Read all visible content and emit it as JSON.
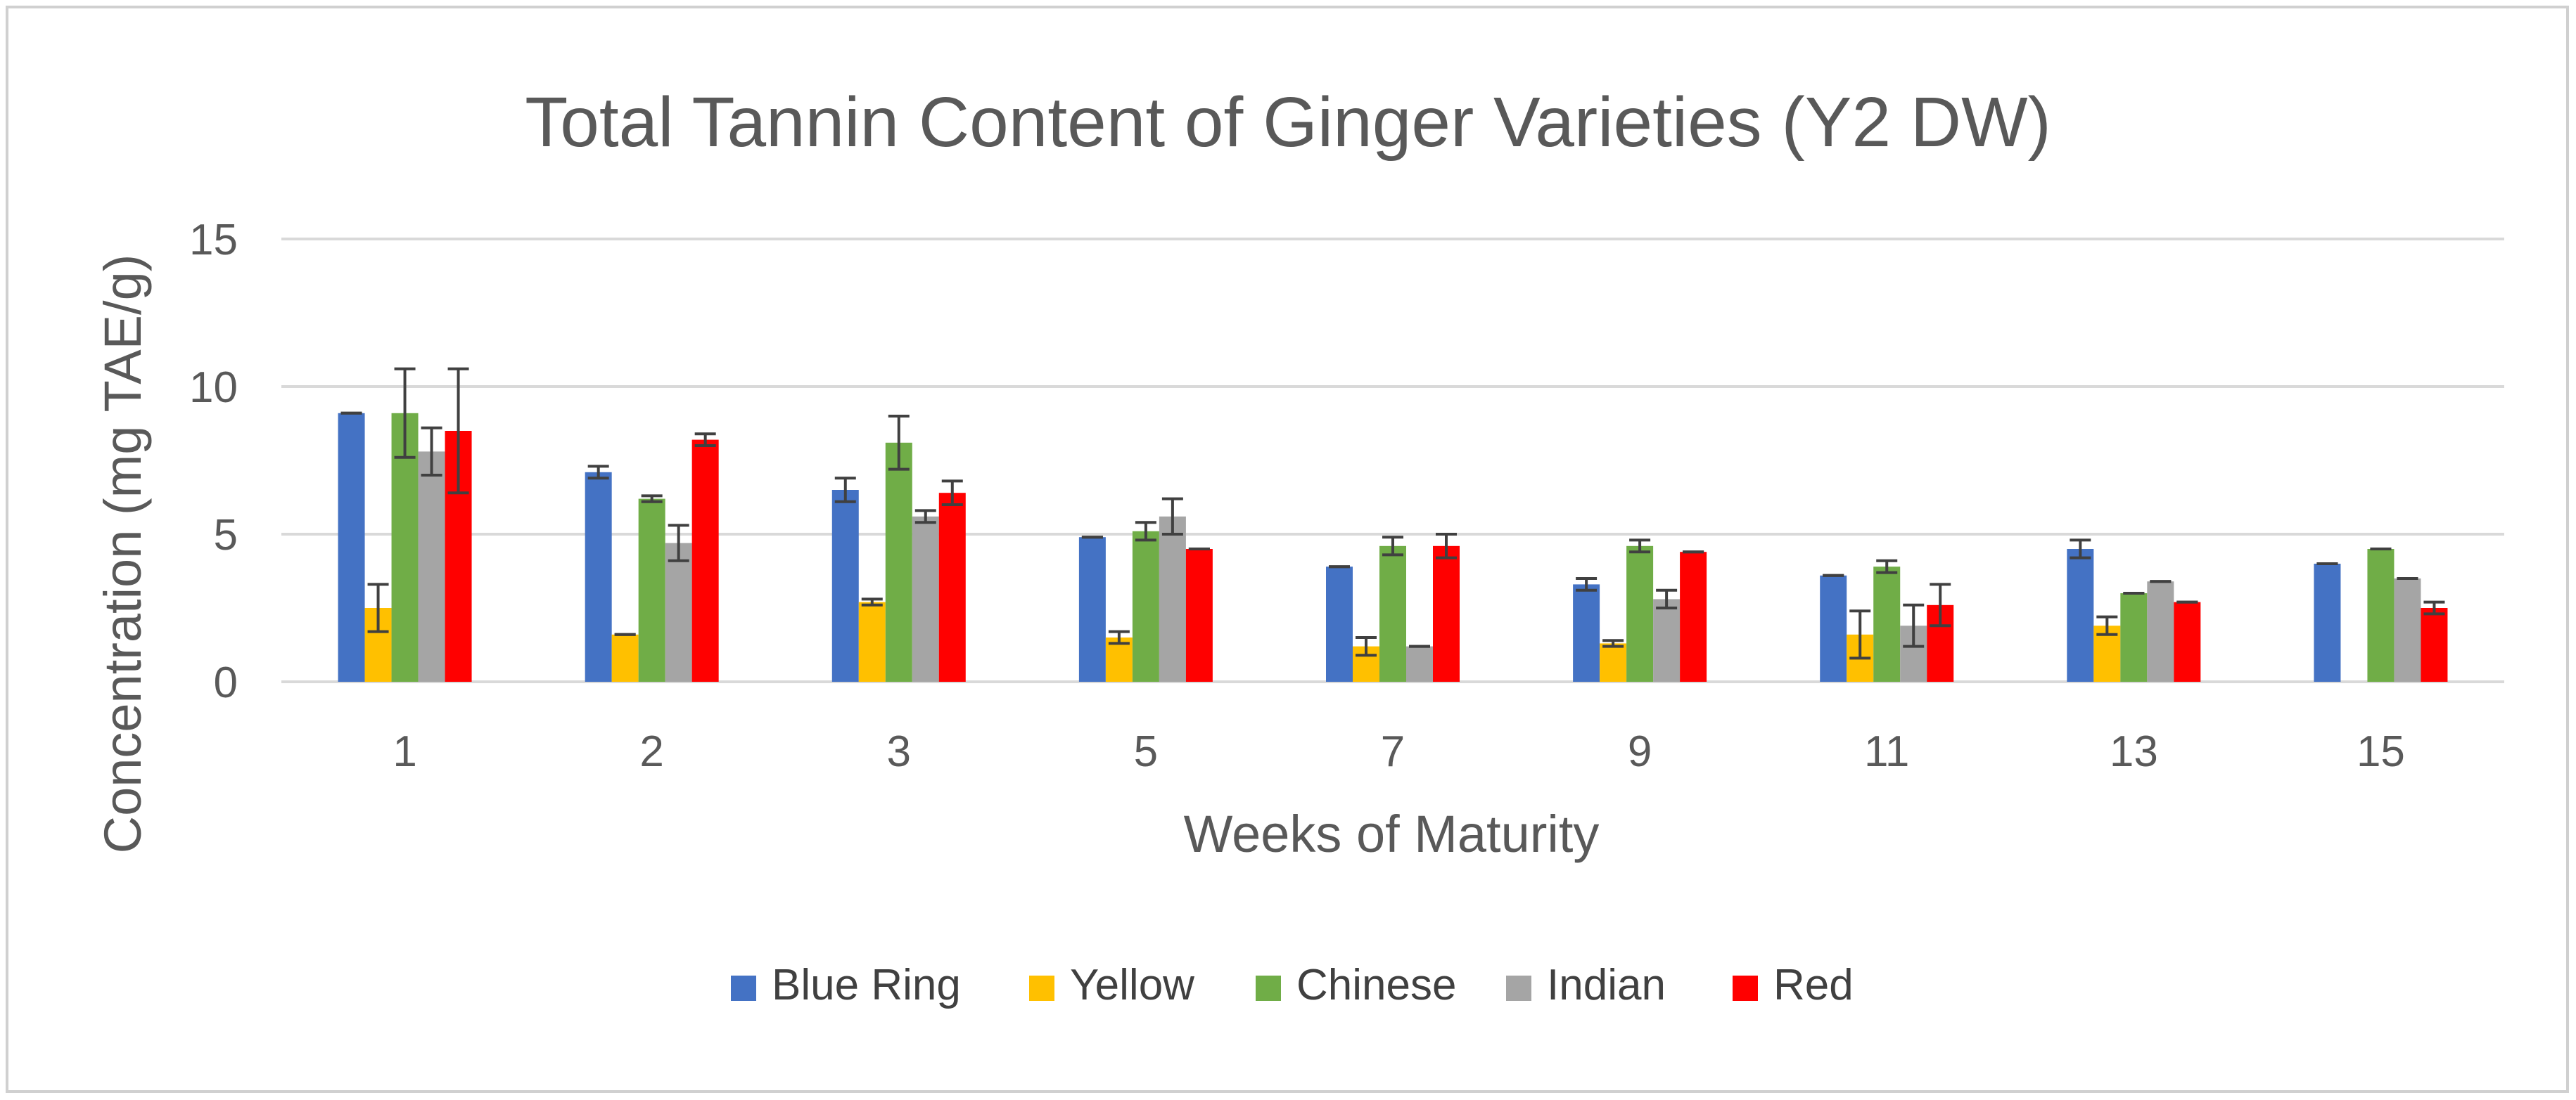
{
  "chart_data": {
    "type": "bar",
    "title": "Total Tannin Content of Ginger Varieties (Y2 DW)",
    "xlabel": "Weeks of Maturity",
    "ylabel": "Concentration (mg TAE/g)",
    "ylim": [
      0,
      15
    ],
    "yticks": [
      0,
      5,
      10,
      15
    ],
    "grid": true,
    "legend_position": "bottom",
    "categories": [
      "1",
      "2",
      "3",
      "5",
      "7",
      "9",
      "11",
      "13",
      "15"
    ],
    "series": [
      {
        "name": "Blue Ring",
        "color": "#4472C4",
        "values": [
          9.1,
          7.1,
          6.5,
          4.9,
          3.9,
          3.3,
          3.6,
          4.5,
          4.0
        ],
        "errors": [
          0.0,
          0.2,
          0.4,
          0.0,
          0.0,
          0.2,
          0.0,
          0.3,
          0.0
        ]
      },
      {
        "name": "Yellow",
        "color": "#FFC000",
        "values": [
          2.5,
          1.6,
          2.7,
          1.5,
          1.2,
          1.3,
          1.6,
          1.9,
          0.0
        ],
        "errors": [
          0.8,
          0.0,
          0.1,
          0.2,
          0.3,
          0.1,
          0.8,
          0.3,
          0.0
        ]
      },
      {
        "name": "Chinese",
        "color": "#70AD47",
        "values": [
          9.1,
          6.2,
          8.1,
          5.1,
          4.6,
          4.6,
          3.9,
          3.0,
          4.5
        ],
        "errors": [
          1.5,
          0.1,
          0.9,
          0.3,
          0.3,
          0.2,
          0.2,
          0.0,
          0.0
        ]
      },
      {
        "name": "Indian",
        "color": "#A5A5A5",
        "values": [
          7.8,
          4.7,
          5.6,
          5.6,
          1.2,
          2.8,
          1.9,
          3.4,
          3.5
        ],
        "errors": [
          0.8,
          0.6,
          0.2,
          0.6,
          0.0,
          0.3,
          0.7,
          0.0,
          0.0
        ]
      },
      {
        "name": "Red",
        "color": "#FF0000",
        "values": [
          8.5,
          8.2,
          6.4,
          4.5,
          4.6,
          4.4,
          2.6,
          2.7,
          2.5
        ],
        "errors": [
          2.1,
          0.2,
          0.4,
          0.0,
          0.4,
          0.0,
          0.7,
          0.0,
          0.2
        ]
      }
    ]
  }
}
